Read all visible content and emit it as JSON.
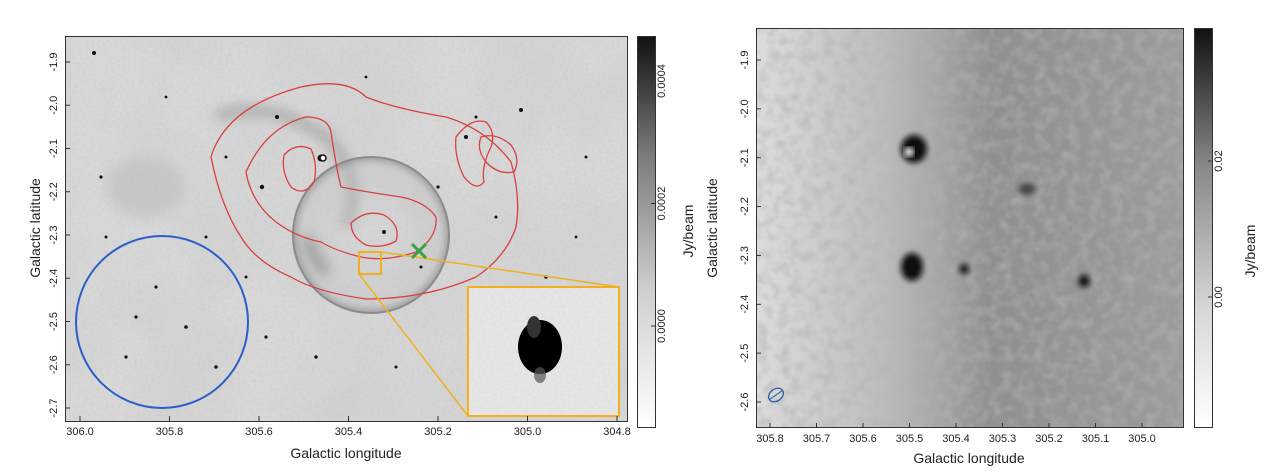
{
  "left_panel": {
    "xlabel": "Galactic longitude",
    "ylabel": "Galactic latitude",
    "x_ticks": [
      "306.0",
      "305.8",
      "305.6",
      "305.4",
      "305.2",
      "305.0",
      "304.8"
    ],
    "y_ticks": [
      "-1.9",
      "-2.0",
      "-2.1",
      "-2.2",
      "-2.3",
      "-2.4",
      "-2.5",
      "-2.6",
      "-2.7"
    ],
    "colorbar": {
      "label": "Jy/beam",
      "ticks": [
        "0.0000",
        "0.0002",
        "0.0004"
      ]
    },
    "overlays": {
      "contour_color": "#d94040",
      "circle_color": "#2a5fc8",
      "marker_color": "#3aa040",
      "inset_box_color": "#f0b020"
    }
  },
  "right_panel": {
    "xlabel": "Galactic longitude",
    "ylabel": "Galactic latitude",
    "x_ticks": [
      "305.8",
      "305.7",
      "305.6",
      "305.5",
      "305.4",
      "305.3",
      "305.2",
      "305.1",
      "305.0"
    ],
    "y_ticks": [
      "-1.9",
      "-2.0",
      "-2.1",
      "-2.2",
      "-2.3",
      "-2.4",
      "-2.5",
      "-2.6"
    ],
    "colorbar": {
      "label": "Jy/beam",
      "ticks": [
        "0.00",
        "0.02"
      ]
    },
    "overlays": {
      "beam_color": "#2a5fa0"
    }
  }
}
